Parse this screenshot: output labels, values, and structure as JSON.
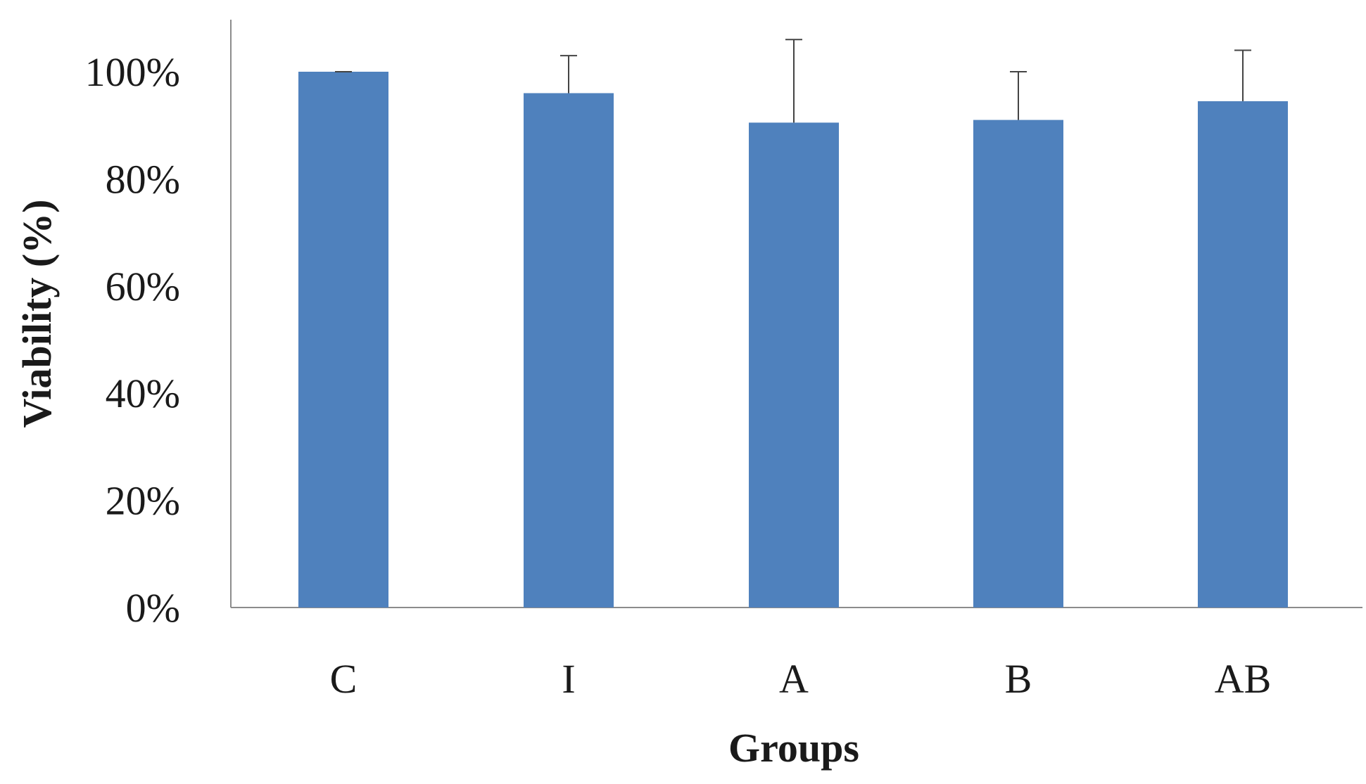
{
  "chart_data": {
    "type": "bar",
    "title": "",
    "xlabel": "Groups",
    "ylabel": "Viability (%)",
    "categories": [
      "C",
      "I",
      "A",
      "B",
      "AB"
    ],
    "series": [
      {
        "values": [
          100,
          96,
          90.5,
          91,
          94.5
        ],
        "error": [
          0,
          7,
          15.5,
          9,
          9.5
        ]
      }
    ],
    "ylim": [
      0,
      100
    ],
    "yticks": [
      0,
      20,
      40,
      60,
      80,
      100
    ],
    "ytick_labels": [
      "0%",
      "20%",
      "40%",
      "60%",
      "80%",
      "100%"
    ],
    "bar_color": "#4f81bd",
    "grid": false,
    "legend": "none"
  }
}
